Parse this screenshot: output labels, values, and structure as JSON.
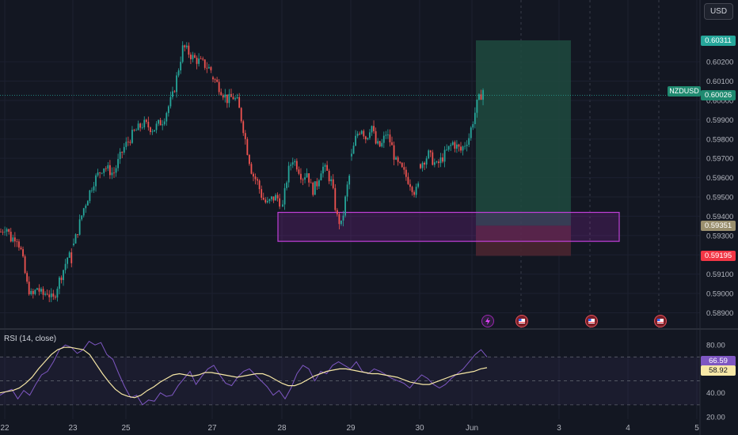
{
  "chart_data": {
    "type": "candlestick",
    "symbol": "NZDUSD",
    "currency": "USD",
    "x_ticks": [
      "22",
      "23",
      "25",
      "27",
      "28",
      "29",
      "30",
      "Jun",
      "3",
      "4",
      "5"
    ],
    "y_ticks": [
      "0.60200",
      "0.60100",
      "0.60000",
      "0.59900",
      "0.59800",
      "0.59700",
      "0.59600",
      "0.59500",
      "0.59400",
      "0.59300",
      "0.59200",
      "0.59100",
      "0.59000",
      "0.58900"
    ],
    "ylim": [
      0.5882,
      0.6052
    ],
    "price_path": [
      [
        0.5932,
        0.5935,
        0.5928,
        0.593,
        0.5921,
        0.5905,
        0.5898,
        0.5903,
        0.5899,
        0.5901,
        0.5896,
        0.5905,
        0.5912,
        0.592,
        0.5916
      ],
      [
        0.5925,
        0.5944,
        0.5958,
        0.5966,
        0.5962,
        0.5975,
        0.5983,
        0.5988,
        0.5985,
        0.599,
        0.6003,
        0.6028,
        0.6022,
        0.6019,
        0.6015
      ],
      [
        0.6012,
        0.6008,
        0.6004,
        0.6,
        0.6002,
        0.5999,
        0.5988,
        0.5974,
        0.5962,
        0.5958,
        0.595,
        0.5946,
        0.5949,
        0.595,
        0.5946
      ],
      [
        0.5945,
        0.5962,
        0.597,
        0.5966,
        0.596,
        0.5963,
        0.5953,
        0.5957,
        0.5966,
        0.5963,
        0.5957,
        0.594,
        0.5935,
        0.5953,
        0.5966
      ],
      [
        0.5971,
        0.5982,
        0.5986,
        0.598,
        0.5988,
        0.5977,
        0.5976,
        0.5983,
        0.5978,
        0.5968,
        0.5965,
        0.5961,
        0.5957,
        0.5952,
        0.5958
      ],
      [
        0.5967,
        0.5972,
        0.5966,
        0.5972,
        0.5978,
        0.5974,
        0.5981,
        0.5998,
        0.6008
      ]
    ],
    "long_position": {
      "entry": 0.59351,
      "target": 0.60311,
      "stop": 0.59195
    },
    "demand_zone": {
      "top": 0.5942,
      "bottom": 0.5927
    },
    "price_labels": [
      {
        "text": "0.60311",
        "value": 0.60311,
        "color": "#26a69a"
      },
      {
        "text": "0.60026",
        "value": 0.60026,
        "color": "#1f8a70"
      },
      {
        "text": "0.59351",
        "value": 0.59351,
        "color": "#9a8f6e"
      },
      {
        "text": "0.59195",
        "value": 0.59195,
        "color": "#f23645"
      }
    ],
    "current_price": {
      "value": 0.60026,
      "label": "0.60026"
    },
    "rsi": {
      "title": "RSI (14, close)",
      "ticks": [
        "80.00",
        "40.00",
        "20.00"
      ],
      "ylim": [
        18,
        92
      ],
      "bands": [
        70,
        50,
        30
      ],
      "rsi_path": [
        38,
        41,
        43,
        35,
        42,
        38,
        47,
        55,
        58,
        66,
        76,
        80,
        78,
        73,
        76,
        83,
        80,
        82,
        72,
        68,
        56,
        45,
        36,
        38,
        30,
        34,
        33,
        40,
        37,
        38,
        46,
        52,
        58,
        47,
        54,
        60,
        63,
        55,
        48,
        46,
        53,
        58,
        60,
        55,
        50,
        45,
        38,
        42,
        35,
        44,
        56,
        63,
        60,
        50,
        58,
        56,
        63,
        66,
        63,
        60,
        66,
        58,
        56,
        60,
        58,
        55,
        52,
        50,
        48,
        44,
        50,
        55,
        52,
        47,
        44,
        47,
        52,
        56,
        60,
        66,
        72,
        76,
        70
      ],
      "ma_path": [
        40,
        41,
        42,
        44,
        48,
        53,
        60,
        66,
        72,
        76,
        78,
        78,
        77,
        76,
        72,
        64,
        56,
        49,
        43,
        39,
        37,
        36,
        38,
        42,
        45,
        49,
        52,
        55,
        56,
        55,
        54,
        55,
        57,
        57,
        56,
        55,
        54,
        53,
        54,
        55,
        56,
        56,
        54,
        51,
        48,
        46,
        46,
        48,
        51,
        54,
        56,
        58,
        59,
        60,
        60,
        59,
        58,
        57,
        56,
        56,
        55,
        54,
        53,
        51,
        49,
        48,
        47,
        47,
        49,
        51,
        53,
        55,
        56,
        57,
        58,
        60,
        61
      ],
      "labels": [
        {
          "text": "66.59",
          "value": 66.59,
          "color": "#7e57c2"
        },
        {
          "text": "58.92",
          "value": 58.92,
          "color": "#f7e8a6"
        }
      ]
    },
    "grid": true
  },
  "ui": {
    "currency_button": "USD",
    "event_icons": [
      "lightning-icon",
      "us-flag-icon",
      "us-flag-icon",
      "us-flag-icon"
    ]
  },
  "colors": {
    "background": "#131722",
    "bull": "#26a69a",
    "bear": "#ef5350",
    "zone": "#9c27b0",
    "rsi_line": "#7e57c2",
    "rsi_ma": "#f7e8a6",
    "profit_zone": "#1e4a3e",
    "loss_zone": "#4a2530"
  }
}
